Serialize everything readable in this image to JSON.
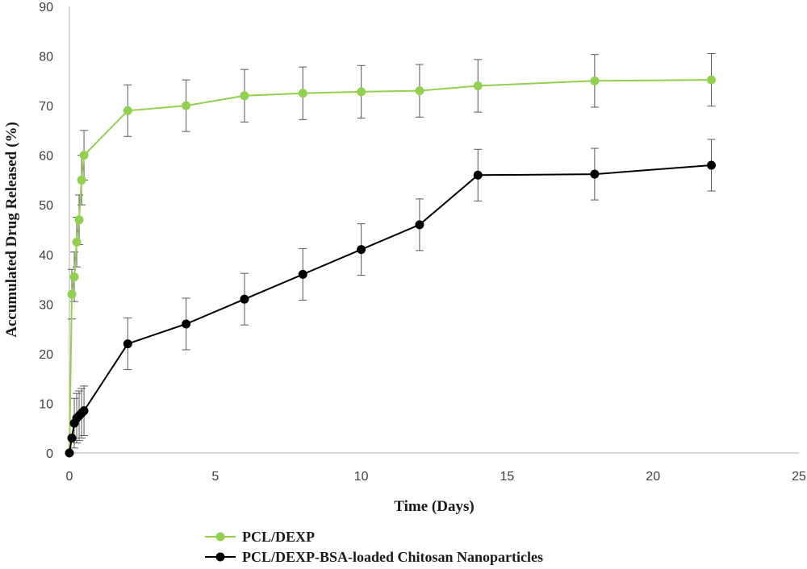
{
  "chart_data": {
    "type": "line",
    "title": "",
    "xlabel": "Time (Days)",
    "ylabel": "Accumulated Drug Released (%)",
    "xlim": [
      0,
      25
    ],
    "ylim": [
      0,
      90
    ],
    "x_ticks": [
      0,
      5,
      10,
      15,
      20,
      25
    ],
    "y_ticks": [
      0,
      10,
      20,
      30,
      40,
      50,
      60,
      70,
      80,
      90
    ],
    "grid": false,
    "legend_position": "bottom-left",
    "error_bars": true,
    "series": [
      {
        "name": "PCL/DEXP",
        "color": "#92d050",
        "points": [
          {
            "x": 0,
            "y": 0,
            "err": 0
          },
          {
            "x": 0.083,
            "y": 32,
            "err": 5
          },
          {
            "x": 0.167,
            "y": 35.5,
            "err": 5
          },
          {
            "x": 0.25,
            "y": 42.5,
            "err": 5
          },
          {
            "x": 0.333,
            "y": 47,
            "err": 5
          },
          {
            "x": 0.417,
            "y": 55,
            "err": 5
          },
          {
            "x": 0.5,
            "y": 60,
            "err": 5
          },
          {
            "x": 2,
            "y": 69,
            "err": 5.2
          },
          {
            "x": 4,
            "y": 70,
            "err": 5.2
          },
          {
            "x": 6,
            "y": 72,
            "err": 5.3
          },
          {
            "x": 8,
            "y": 72.5,
            "err": 5.3
          },
          {
            "x": 10,
            "y": 72.8,
            "err": 5.3
          },
          {
            "x": 12,
            "y": 73,
            "err": 5.3
          },
          {
            "x": 14,
            "y": 74,
            "err": 5.3
          },
          {
            "x": 18,
            "y": 75,
            "err": 5.3
          },
          {
            "x": 22,
            "y": 75.2,
            "err": 5.3
          }
        ]
      },
      {
        "name": "PCL/DEXP-BSA-loaded Chitosan Nanoparticles",
        "color": "#000000",
        "points": [
          {
            "x": 0,
            "y": 0,
            "err": 0
          },
          {
            "x": 0.083,
            "y": 3,
            "err": 0
          },
          {
            "x": 0.167,
            "y": 6,
            "err": 5
          },
          {
            "x": 0.25,
            "y": 7,
            "err": 5
          },
          {
            "x": 0.333,
            "y": 7.5,
            "err": 5
          },
          {
            "x": 0.417,
            "y": 8,
            "err": 5
          },
          {
            "x": 0.5,
            "y": 8.5,
            "err": 5
          },
          {
            "x": 2,
            "y": 22,
            "err": 5.2
          },
          {
            "x": 4,
            "y": 26,
            "err": 5.2
          },
          {
            "x": 6,
            "y": 31,
            "err": 5.2
          },
          {
            "x": 8,
            "y": 36,
            "err": 5.2
          },
          {
            "x": 10,
            "y": 41,
            "err": 5.2
          },
          {
            "x": 12,
            "y": 46,
            "err": 5.2
          },
          {
            "x": 14,
            "y": 56,
            "err": 5.2
          },
          {
            "x": 18,
            "y": 56.2,
            "err": 5.2
          },
          {
            "x": 22,
            "y": 58,
            "err": 5.2
          }
        ]
      }
    ]
  }
}
